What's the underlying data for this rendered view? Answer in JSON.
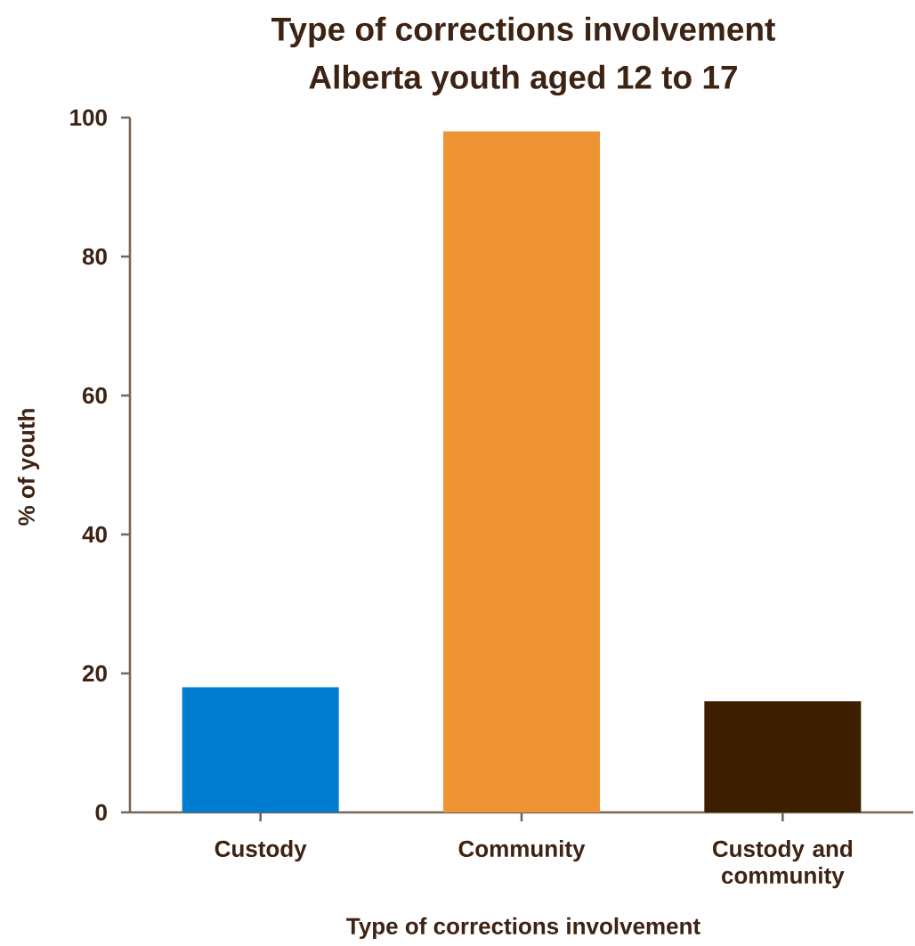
{
  "chart_data": {
    "type": "bar",
    "title": "Type of corrections involvement",
    "subtitle": "Alberta youth aged 12 to 17",
    "xlabel": "Type of corrections involvement",
    "ylabel": "% of youth",
    "categories": [
      "Custody",
      "Community",
      "Custody and community"
    ],
    "values": [
      18,
      98,
      16
    ],
    "colors": [
      "#007dd1",
      "#ef9433",
      "#3d1f00"
    ],
    "ylim": [
      0,
      100
    ],
    "yticks": [
      0,
      20,
      40,
      60,
      80,
      100
    ]
  }
}
